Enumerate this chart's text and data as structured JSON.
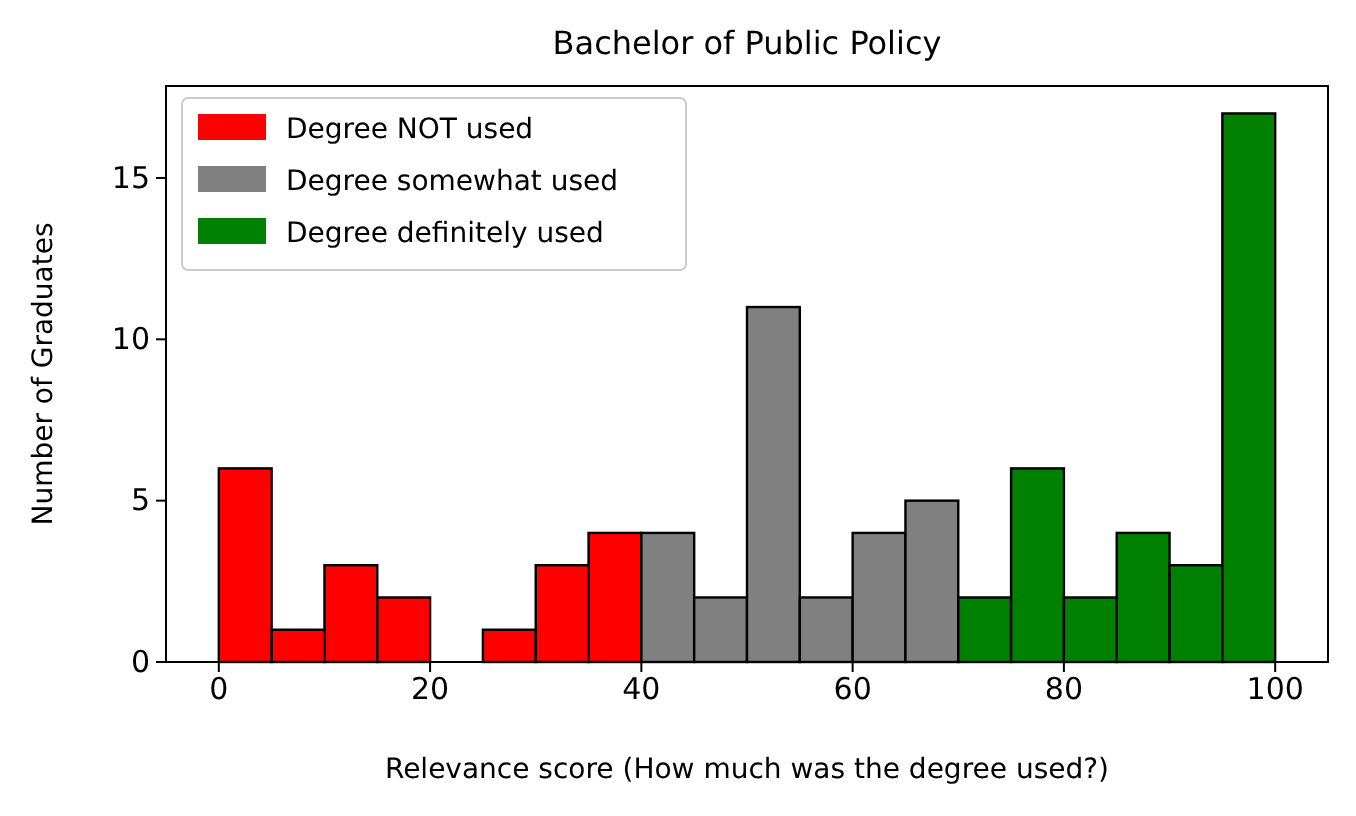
{
  "chart_data": {
    "type": "histogram",
    "title": "Bachelor of Public Policy",
    "xlabel": "Relevance score (How much was the degree used?)",
    "ylabel": "Number of Graduates",
    "bins": [
      0,
      5,
      10,
      15,
      20,
      25,
      30,
      35,
      40,
      45,
      50,
      55,
      60,
      65,
      70,
      75,
      80,
      85,
      90,
      95,
      100
    ],
    "series": [
      {
        "name": "Degree NOT used",
        "color": "#ff0000",
        "values": [
          6,
          1,
          3,
          2,
          0,
          1,
          3,
          4,
          null,
          null,
          null,
          null,
          null,
          null,
          null,
          null,
          null,
          null,
          null,
          null
        ]
      },
      {
        "name": "Degree somewhat used",
        "color": "#808080",
        "values": [
          null,
          null,
          null,
          null,
          null,
          null,
          null,
          null,
          4,
          2,
          11,
          2,
          4,
          5,
          null,
          null,
          null,
          null,
          null,
          null
        ]
      },
      {
        "name": "Degree definitely used",
        "color": "#008000",
        "values": [
          null,
          null,
          null,
          null,
          null,
          null,
          null,
          null,
          null,
          null,
          null,
          null,
          null,
          null,
          2,
          6,
          2,
          4,
          3,
          17
        ]
      }
    ],
    "xlim": [
      -5,
      105
    ],
    "xticks": [
      0,
      20,
      40,
      60,
      80,
      100
    ],
    "ylim": [
      0,
      17.85
    ],
    "yticks": [
      0,
      5,
      10,
      15
    ],
    "legend": "top left"
  }
}
